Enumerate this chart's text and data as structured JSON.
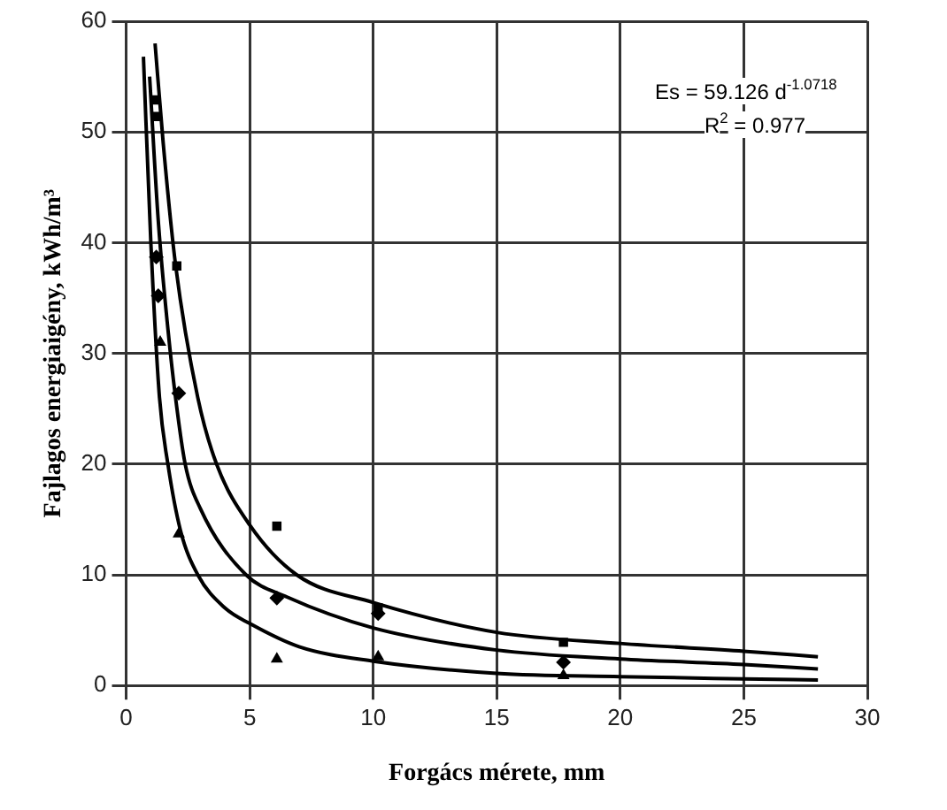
{
  "chart_data": {
    "type": "scatter",
    "xlabel": "Forgács mérete, mm",
    "ylabel": "Fajlagos energiaigény, kWh/m³",
    "xlim": [
      0,
      30
    ],
    "xticks": [
      0,
      5,
      10,
      15,
      20,
      25,
      30
    ],
    "ylim": [
      0,
      60
    ],
    "yticks": [
      0,
      10,
      20,
      30,
      40,
      50,
      60
    ],
    "grid": true,
    "legend": false,
    "annotations": [
      "Es = 59.126 d$^{-1.0718}$",
      "R$^{2}$ = 0.977"
    ],
    "series": [
      {
        "type": "line",
        "color": "#000000",
        "marker": "none",
        "x": [
          1.17,
          1.5,
          2,
          2.9,
          3.66,
          5,
          6.9,
          10,
          15,
          20,
          25,
          28
        ],
        "values": [
          58,
          49,
          38,
          26,
          20,
          14.5,
          10,
          7.5,
          4.8,
          3.8,
          3.1,
          2.6
        ]
      },
      {
        "type": "line",
        "color": "#000000",
        "marker": "none",
        "x": [
          0.95,
          1.3,
          1.7,
          2,
          2.39,
          3,
          4.85,
          6.5,
          10,
          15,
          20,
          25,
          28
        ],
        "values": [
          55,
          42,
          32,
          26,
          20,
          16,
          10,
          8,
          5.2,
          3.2,
          2.4,
          1.9,
          1.5
        ]
      },
      {
        "type": "line",
        "color": "#000000",
        "marker": "none",
        "x": [
          0.7,
          1,
          1.35,
          1.69,
          2.2,
          2.9,
          4,
          5,
          7,
          10,
          15,
          20,
          25,
          28
        ],
        "values": [
          56.8,
          40,
          26,
          20,
          14,
          10,
          7,
          5.6,
          3.5,
          2.2,
          1.1,
          0.8,
          0.6,
          0.5
        ]
      },
      {
        "color": "#000000",
        "marker": "square",
        "x": [
          1.17,
          1.22,
          2.05,
          6.1,
          10.2,
          17.7
        ],
        "values": [
          52.9,
          51.4,
          37.9,
          14.4,
          7,
          3.9
        ]
      },
      {
        "color": "#000000",
        "marker": "diamond",
        "x": [
          1.22,
          1.3,
          2.13,
          6.1,
          10.2,
          17.7
        ],
        "values": [
          38.7,
          35.2,
          26.4,
          7.9,
          6.5,
          2.1
        ]
      },
      {
        "color": "#000000",
        "marker": "triangle",
        "x": [
          1.38,
          2.13,
          6.1,
          10.2,
          17.7
        ],
        "values": [
          31,
          13.7,
          2.4,
          2.6,
          0.9
        ]
      }
    ]
  }
}
